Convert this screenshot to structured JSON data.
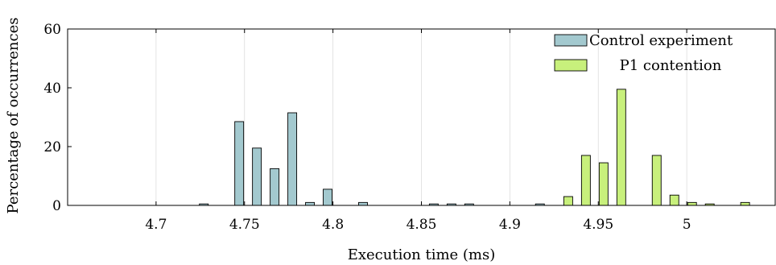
{
  "chart_data": {
    "type": "bar",
    "xlabel": "Execution time (ms)",
    "ylabel": "Percentage of occurrences",
    "xlim": [
      4.65,
      5.05
    ],
    "ylim": [
      0,
      60
    ],
    "xticks": [
      4.7,
      4.75,
      4.8,
      4.85,
      4.9,
      4.95,
      5
    ],
    "xtick_labels": [
      "4.7",
      "4.75",
      "4.8",
      "4.85",
      "4.9",
      "4.95",
      "5"
    ],
    "yticks": [
      0,
      20,
      40,
      60
    ],
    "ytick_labels": [
      "0",
      "20",
      "40",
      "60"
    ],
    "grid": "vertical",
    "legend_position": "top-right",
    "series": [
      {
        "name": "Control experiment",
        "color": "#a3c9cf",
        "points": [
          {
            "x": 4.727,
            "y": 0.5
          },
          {
            "x": 4.747,
            "y": 28.5
          },
          {
            "x": 4.757,
            "y": 19.5
          },
          {
            "x": 4.767,
            "y": 12.5
          },
          {
            "x": 4.777,
            "y": 31.5
          },
          {
            "x": 4.787,
            "y": 1.0
          },
          {
            "x": 4.797,
            "y": 5.5
          },
          {
            "x": 4.817,
            "y": 1.0
          },
          {
            "x": 4.857,
            "y": 0.5
          },
          {
            "x": 4.867,
            "y": 0.5
          },
          {
            "x": 4.877,
            "y": 0.5
          },
          {
            "x": 4.917,
            "y": 0.5
          }
        ]
      },
      {
        "name": "P1 contention",
        "color": "#c8f07c",
        "points": [
          {
            "x": 4.933,
            "y": 3.0
          },
          {
            "x": 4.943,
            "y": 17.0
          },
          {
            "x": 4.953,
            "y": 14.5
          },
          {
            "x": 4.963,
            "y": 39.5
          },
          {
            "x": 4.983,
            "y": 17.0
          },
          {
            "x": 4.993,
            "y": 3.5
          },
          {
            "x": 5.003,
            "y": 1.0
          },
          {
            "x": 5.013,
            "y": 0.5
          },
          {
            "x": 5.033,
            "y": 1.0
          },
          {
            "x": 5.053,
            "y": 0.5
          }
        ]
      }
    ]
  }
}
